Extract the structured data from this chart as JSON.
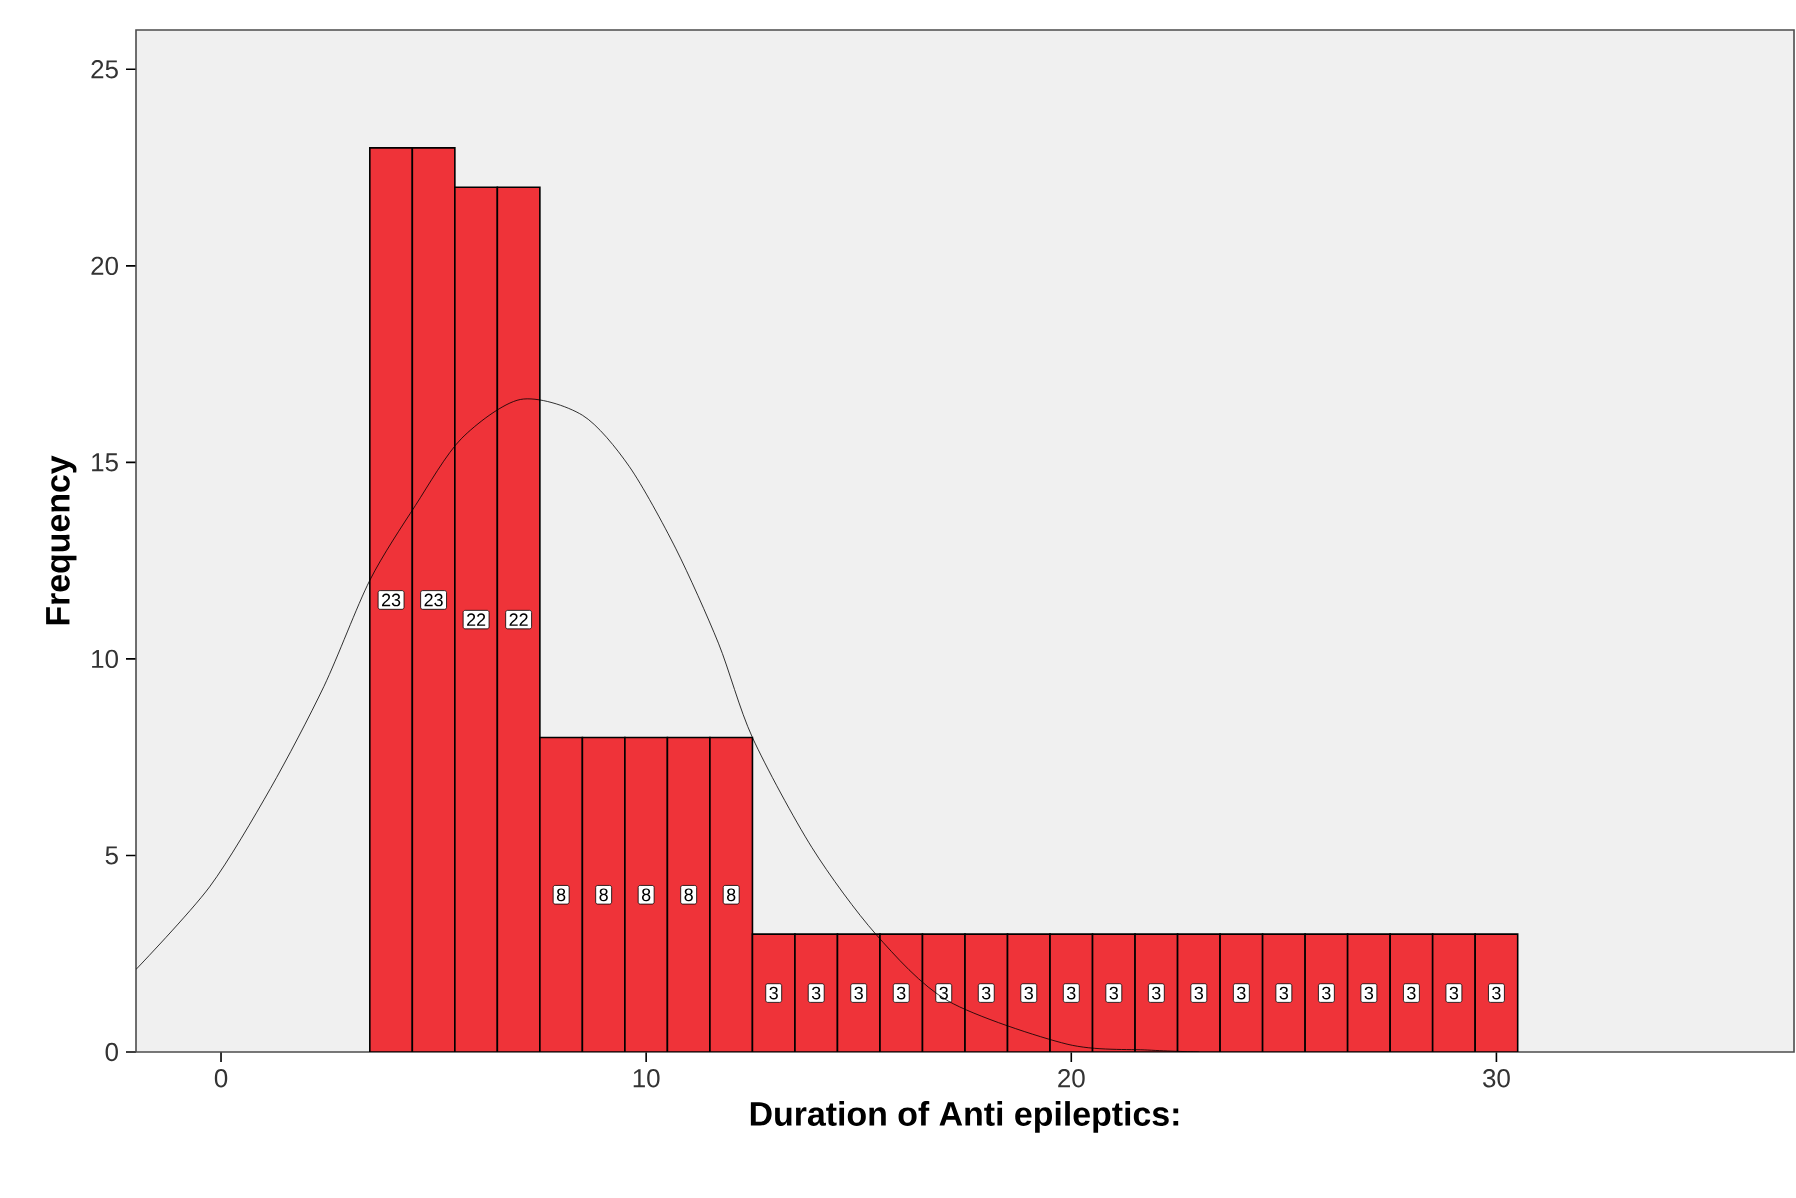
{
  "chart_data": {
    "type": "histogram",
    "xlabel": "Duration of Anti epileptics:",
    "ylabel": "Frequency",
    "xlim": [
      -2,
      37
    ],
    "ylim": [
      0,
      26
    ],
    "xticks": [
      0,
      10,
      20,
      30
    ],
    "yticks": [
      0,
      5,
      10,
      15,
      20,
      25
    ],
    "grid": false,
    "series": [
      {
        "color": "#ef3339",
        "bins": [
          3.5,
          4.5,
          5.5,
          6.5,
          7.5,
          8.5,
          9.5,
          10.5,
          11.5,
          12.5,
          13.5,
          14.5,
          15.5,
          16.5,
          17.5,
          18.5,
          19.5,
          20.5,
          21.5,
          22.5,
          23.5,
          24.5,
          25.5,
          26.5,
          27.5,
          28.5,
          29.5,
          30.5
        ],
        "values": [
          23,
          23,
          22,
          22,
          8,
          8,
          8,
          8,
          8,
          3,
          3,
          3,
          3,
          3,
          3,
          3,
          3,
          3,
          3,
          3,
          3,
          3,
          3,
          3,
          3,
          3,
          3
        ],
        "value_labels": [
          "23",
          "23",
          "22",
          "22",
          "8",
          "8",
          "8",
          "8",
          "8",
          "3",
          "3",
          "3",
          "3",
          "3",
          "3",
          "3",
          "3",
          "3",
          "3",
          "3",
          "3",
          "3",
          "3",
          "3",
          "3",
          "3",
          "3"
        ]
      },
      {
        "type": "line",
        "color": "#000000",
        "marker": "none",
        "x": [
          -2,
          -0.27,
          1.16,
          2.42,
          3.5,
          4.57,
          5.65,
          7.04,
          8.5,
          9.6,
          10.7,
          11.7,
          12.5,
          13.9,
          15.4,
          17.1,
          19.9,
          21.8,
          23
        ],
        "values": [
          2.1,
          4.2,
          6.7,
          9.3,
          12.0,
          13.9,
          15.6,
          16.6,
          16.2,
          14.9,
          12.8,
          10.4,
          8.0,
          5.2,
          3.0,
          1.3,
          0.2,
          0.05,
          0
        ]
      }
    ]
  }
}
